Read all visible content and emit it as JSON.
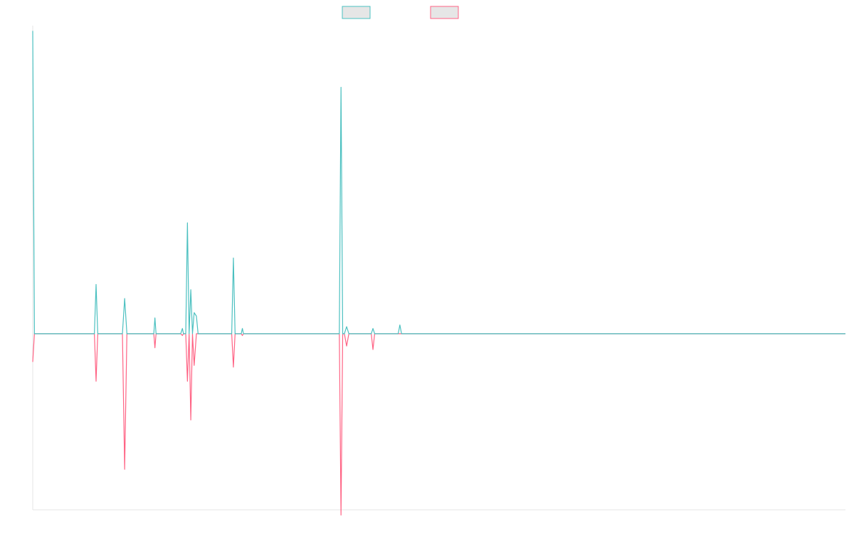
{
  "chart_data": {
    "type": "line",
    "title": "",
    "xlabel": "",
    "ylabel": "",
    "grid": false,
    "legend": "top-center",
    "ylim": [
      -100,
      175
    ],
    "xlim": [
      0,
      145
    ],
    "colors": {
      "series_1": "#4bc0c0",
      "series_2": "#ff6384",
      "axis": "#e5e5e5"
    },
    "series": [
      {
        "color": "#4bc0c0",
        "points": [
          [
            0,
            172
          ],
          [
            0.3,
            0
          ],
          [
            5,
            0
          ],
          [
            11,
            0
          ],
          [
            11.3,
            28
          ],
          [
            11.6,
            0
          ],
          [
            16,
            0
          ],
          [
            16.4,
            20
          ],
          [
            16.8,
            0
          ],
          [
            21.6,
            0
          ],
          [
            21.8,
            9
          ],
          [
            22,
            0
          ],
          [
            26.4,
            0
          ],
          [
            26.7,
            3
          ],
          [
            26.9,
            0
          ],
          [
            27.3,
            0
          ],
          [
            27.6,
            63
          ],
          [
            27.9,
            0
          ],
          [
            28.2,
            25
          ],
          [
            28.5,
            0
          ],
          [
            28.8,
            12
          ],
          [
            29.2,
            10
          ],
          [
            29.5,
            0
          ],
          [
            33.3,
            0
          ],
          [
            35.5,
            0
          ],
          [
            35.8,
            43
          ],
          [
            36.1,
            0
          ],
          [
            37.2,
            0
          ],
          [
            37.4,
            3
          ],
          [
            37.6,
            0
          ],
          [
            54.7,
            0
          ],
          [
            55,
            140
          ],
          [
            55.3,
            0
          ],
          [
            55.6,
            0
          ],
          [
            56,
            4
          ],
          [
            56.4,
            0
          ],
          [
            60.4,
            0
          ],
          [
            60.7,
            3
          ],
          [
            61,
            0
          ],
          [
            65.2,
            0
          ],
          [
            65.5,
            5
          ],
          [
            65.8,
            0
          ],
          [
            145,
            0
          ]
        ]
      },
      {
        "color": "#ff6384",
        "points": [
          [
            0,
            -16
          ],
          [
            0.3,
            0
          ],
          [
            5,
            0
          ],
          [
            11,
            0
          ],
          [
            11.3,
            -27
          ],
          [
            11.6,
            0
          ],
          [
            16,
            0
          ],
          [
            16.4,
            -77
          ],
          [
            16.8,
            0
          ],
          [
            21.6,
            0
          ],
          [
            21.8,
            -8
          ],
          [
            22,
            0
          ],
          [
            26.4,
            0
          ],
          [
            26.7,
            -1
          ],
          [
            26.9,
            0
          ],
          [
            27.3,
            0
          ],
          [
            27.6,
            -27
          ],
          [
            27.9,
            0
          ],
          [
            28.2,
            -49
          ],
          [
            28.5,
            0
          ],
          [
            28.8,
            -18
          ],
          [
            29.2,
            0
          ],
          [
            33.3,
            0
          ],
          [
            35.5,
            0
          ],
          [
            35.8,
            -19
          ],
          [
            36.1,
            0
          ],
          [
            37.2,
            0
          ],
          [
            37.4,
            -1
          ],
          [
            37.6,
            0
          ],
          [
            54.7,
            0
          ],
          [
            55,
            -103
          ],
          [
            55.3,
            0
          ],
          [
            55.6,
            0
          ],
          [
            56,
            -7
          ],
          [
            56.4,
            0
          ],
          [
            60.4,
            0
          ],
          [
            60.7,
            -9
          ],
          [
            61,
            0
          ],
          [
            65.2,
            0
          ],
          [
            145,
            0
          ]
        ]
      }
    ]
  }
}
